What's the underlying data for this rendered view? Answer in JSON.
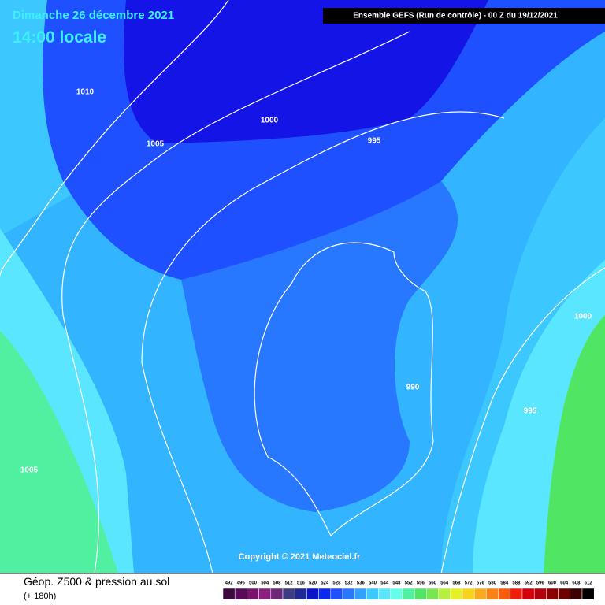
{
  "header": {
    "date": "Dimanche 26 décembre 2021",
    "time": "14:00 locale",
    "run": "Ensemble GEFS  (Run de contrôle)  -  00 Z du 19/12/2021"
  },
  "isobars": [
    "1010",
    "1005",
    "1000",
    "995",
    "1000",
    "990",
    "995",
    "1005"
  ],
  "copyright": "Copyright © 2021 Meteociel.fr",
  "footer": {
    "title": "Géop. Z500 & pression au sol",
    "lead": "(+ 180h)"
  },
  "scale": {
    "labels": [
      "492",
      "496",
      "500",
      "504",
      "508",
      "512",
      "516",
      "520",
      "524",
      "528",
      "532",
      "536",
      "540",
      "544",
      "548",
      "552",
      "556",
      "560",
      "564",
      "568",
      "572",
      "576",
      "580",
      "584",
      "588",
      "592",
      "596",
      "600",
      "604",
      "608",
      "612"
    ],
    "colors": [
      "#3c0a3c",
      "#5a0a5a",
      "#78146e",
      "#8c1e82",
      "#6e2878",
      "#3c3c82",
      "#1e2896",
      "#0a14c8",
      "#0a28f0",
      "#1e50ff",
      "#2878ff",
      "#32a0ff",
      "#3cc8ff",
      "#5ae6ff",
      "#64ffe6",
      "#50f0a0",
      "#50e664",
      "#78e650",
      "#b4f03c",
      "#e6f028",
      "#fad21e",
      "#faaa1e",
      "#fa8214",
      "#fa5a0a",
      "#f01e0a",
      "#d2000a",
      "#b4000a",
      "#8c0000",
      "#6e0000",
      "#3c0000",
      "#000000"
    ]
  }
}
